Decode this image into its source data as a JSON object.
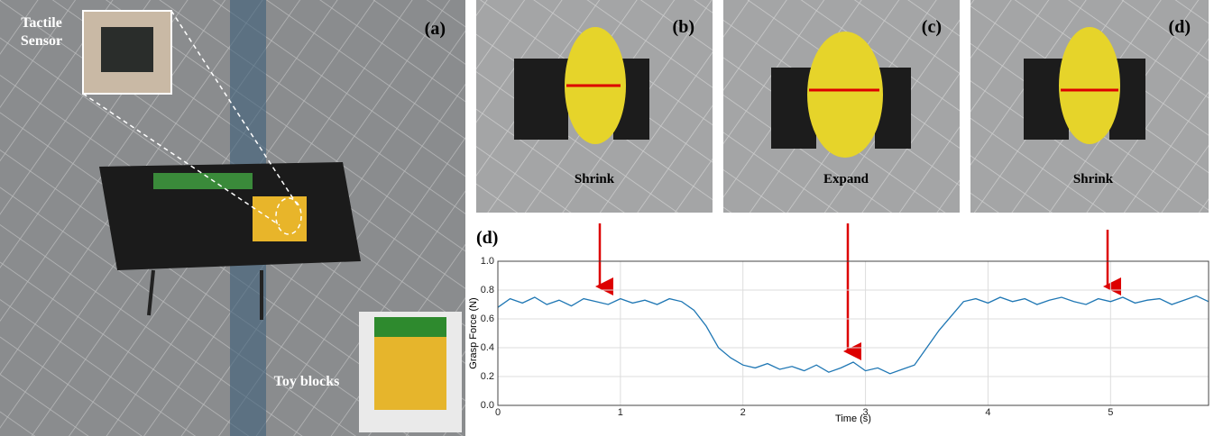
{
  "panels": {
    "a": {
      "label": "(a)",
      "sensor_label": [
        "Tactile",
        "Sensor"
      ],
      "toy_label": "Toy blocks"
    },
    "b": {
      "label": "(b)",
      "state": "Shrink"
    },
    "c": {
      "label": "(c)",
      "state": "Expand"
    },
    "d": {
      "label": "(d)",
      "state": "Shrink"
    }
  },
  "chart_data": {
    "type": "line",
    "panel_label": "(d)",
    "x_label": "Time (s)",
    "y_label": "Grasp Force (N)",
    "x": [
      0.0,
      0.1,
      0.2,
      0.3,
      0.4,
      0.5,
      0.6,
      0.7,
      0.8,
      0.9,
      1.0,
      1.1,
      1.2,
      1.3,
      1.4,
      1.5,
      1.6,
      1.7,
      1.8,
      1.9,
      2.0,
      2.1,
      2.2,
      2.3,
      2.4,
      2.5,
      2.6,
      2.7,
      2.8,
      2.9,
      3.0,
      3.1,
      3.2,
      3.3,
      3.4,
      3.5,
      3.6,
      3.7,
      3.8,
      3.9,
      4.0,
      4.1,
      4.2,
      4.3,
      4.4,
      4.5,
      4.6,
      4.7,
      4.8,
      4.9,
      5.0,
      5.1,
      5.2,
      5.3,
      5.4,
      5.5,
      5.6,
      5.7,
      5.8
    ],
    "series": [
      {
        "color": "#1f77b4",
        "values": [
          0.68,
          0.74,
          0.71,
          0.75,
          0.7,
          0.73,
          0.69,
          0.74,
          0.72,
          0.7,
          0.74,
          0.71,
          0.73,
          0.7,
          0.74,
          0.72,
          0.66,
          0.55,
          0.4,
          0.33,
          0.28,
          0.26,
          0.29,
          0.25,
          0.27,
          0.24,
          0.28,
          0.23,
          0.26,
          0.3,
          0.24,
          0.26,
          0.22,
          0.25,
          0.28,
          0.4,
          0.52,
          0.62,
          0.72,
          0.74,
          0.71,
          0.75,
          0.72,
          0.74,
          0.7,
          0.73,
          0.75,
          0.72,
          0.7,
          0.74,
          0.72,
          0.75,
          0.71,
          0.73,
          0.74,
          0.7,
          0.73,
          0.76,
          0.72
        ]
      }
    ],
    "xlim": [
      0,
      5.8
    ],
    "xticks": [
      0,
      1,
      2,
      3,
      4,
      5
    ],
    "ylim": [
      0,
      1
    ],
    "yticks": [
      {
        "value": 0,
        "label": "0.0"
      },
      {
        "value": 0.2,
        "label": "0.2"
      },
      {
        "value": 0.4,
        "label": "0.4"
      },
      {
        "value": 0.6,
        "label": "0.6"
      },
      {
        "value": 0.8,
        "label": "0.8"
      },
      {
        "value": 1,
        "label": "1.0"
      }
    ],
    "grid": true
  }
}
